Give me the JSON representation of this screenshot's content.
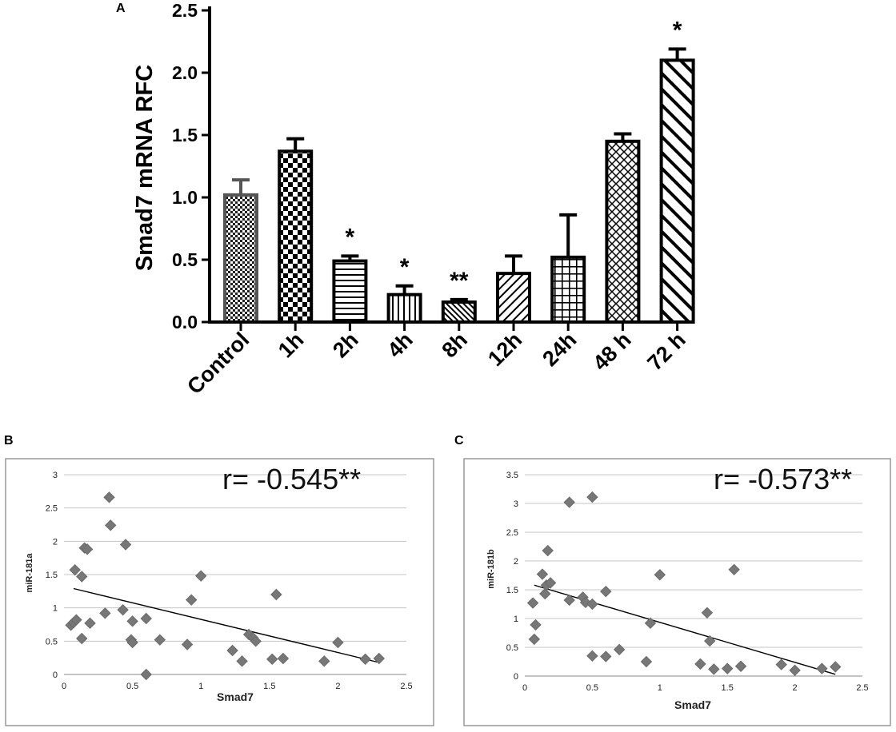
{
  "panels": {
    "a": "A",
    "b": "B",
    "c": "C"
  },
  "chart_data": [
    {
      "type": "bar",
      "panel": "A",
      "title": "",
      "xlabel": "",
      "ylabel": "Smad7 mRNA RFC",
      "ylim": [
        0,
        2.5
      ],
      "yticks": [
        "0.0",
        "0.5",
        "1.0",
        "1.5",
        "2.0",
        "2.5"
      ],
      "categories": [
        "Control",
        "1h",
        "2h",
        "4h",
        "8h",
        "12h",
        "24h",
        "48 h",
        "72 h"
      ],
      "values": [
        1.02,
        1.37,
        0.49,
        0.22,
        0.16,
        0.39,
        0.52,
        1.45,
        2.1
      ],
      "errors": [
        0.12,
        0.1,
        0.04,
        0.07,
        0.02,
        0.14,
        0.34,
        0.06,
        0.09
      ],
      "significance": [
        "",
        "",
        "*",
        "*",
        "**",
        "",
        "",
        "",
        "*"
      ],
      "patterns": [
        "fine-check",
        "checker",
        "horizontal",
        "vertical",
        "diagonal-fine",
        "diagonal-left",
        "grid",
        "diamond",
        "diagonal-right"
      ]
    },
    {
      "type": "scatter",
      "panel": "B",
      "xlabel": "Smad7",
      "ylabel": "miR-181a",
      "xlim": [
        0,
        2.5
      ],
      "ylim": [
        0,
        3
      ],
      "xticks": [
        "0",
        "0.5",
        "1",
        "1.5",
        "2",
        "2.5"
      ],
      "yticks": [
        "0",
        "0.5",
        "1",
        "1.5",
        "2",
        "2.5",
        "3"
      ],
      "annotation": "r= -0.545**",
      "trendline": [
        [
          0.07,
          1.29
        ],
        [
          2.3,
          0.18
        ]
      ],
      "points": [
        [
          0.05,
          0.74
        ],
        [
          0.07,
          0.78
        ],
        [
          0.09,
          0.82
        ],
        [
          0.08,
          1.57
        ],
        [
          0.13,
          1.47
        ],
        [
          0.15,
          1.9
        ],
        [
          0.17,
          1.88
        ],
        [
          0.13,
          0.54
        ],
        [
          0.19,
          0.77
        ],
        [
          0.3,
          0.92
        ],
        [
          0.33,
          2.66
        ],
        [
          0.34,
          2.24
        ],
        [
          0.43,
          0.97
        ],
        [
          0.45,
          1.95
        ],
        [
          0.5,
          0.8
        ],
        [
          0.49,
          0.52
        ],
        [
          0.5,
          0.48
        ],
        [
          0.6,
          0.84
        ],
        [
          0.6,
          0.0
        ],
        [
          0.7,
          0.52
        ],
        [
          0.9,
          0.45
        ],
        [
          0.93,
          1.12
        ],
        [
          1.0,
          1.48
        ],
        [
          1.23,
          0.36
        ],
        [
          1.3,
          0.2
        ],
        [
          1.35,
          0.6
        ],
        [
          1.38,
          0.55
        ],
        [
          1.4,
          0.5
        ],
        [
          1.55,
          1.2
        ],
        [
          1.52,
          0.23
        ],
        [
          1.6,
          0.24
        ],
        [
          1.9,
          0.2
        ],
        [
          2.0,
          0.48
        ],
        [
          2.2,
          0.23
        ],
        [
          2.3,
          0.24
        ]
      ]
    },
    {
      "type": "scatter",
      "panel": "C",
      "xlabel": "Smad7",
      "ylabel": "miR-181b",
      "xlim": [
        0,
        2.5
      ],
      "ylim": [
        0,
        3.5
      ],
      "xticks": [
        "0",
        "0.5",
        "1",
        "1.5",
        "2",
        "2.5"
      ],
      "yticks": [
        "0",
        "0.5",
        "1",
        "1.5",
        "2",
        "2.5",
        "3",
        "3.5"
      ],
      "annotation": "r= -0.573**",
      "trendline": [
        [
          0.07,
          1.58
        ],
        [
          2.3,
          0.03
        ]
      ],
      "points": [
        [
          0.06,
          1.27
        ],
        [
          0.07,
          0.64
        ],
        [
          0.08,
          0.89
        ],
        [
          0.13,
          1.77
        ],
        [
          0.15,
          1.43
        ],
        [
          0.16,
          1.58
        ],
        [
          0.17,
          2.18
        ],
        [
          0.19,
          1.62
        ],
        [
          0.33,
          1.32
        ],
        [
          0.33,
          3.02
        ],
        [
          0.43,
          1.37
        ],
        [
          0.45,
          1.28
        ],
        [
          0.5,
          1.25
        ],
        [
          0.5,
          3.11
        ],
        [
          0.5,
          0.35
        ],
        [
          0.6,
          1.47
        ],
        [
          0.6,
          0.34
        ],
        [
          0.7,
          0.46
        ],
        [
          0.9,
          0.25
        ],
        [
          0.93,
          0.92
        ],
        [
          1.0,
          1.76
        ],
        [
          1.3,
          0.21
        ],
        [
          1.35,
          1.1
        ],
        [
          1.37,
          0.61
        ],
        [
          1.4,
          0.12
        ],
        [
          1.5,
          0.13
        ],
        [
          1.55,
          1.85
        ],
        [
          1.6,
          0.17
        ],
        [
          1.9,
          0.2
        ],
        [
          2.0,
          0.1
        ],
        [
          2.2,
          0.13
        ],
        [
          2.3,
          0.16
        ]
      ]
    }
  ]
}
